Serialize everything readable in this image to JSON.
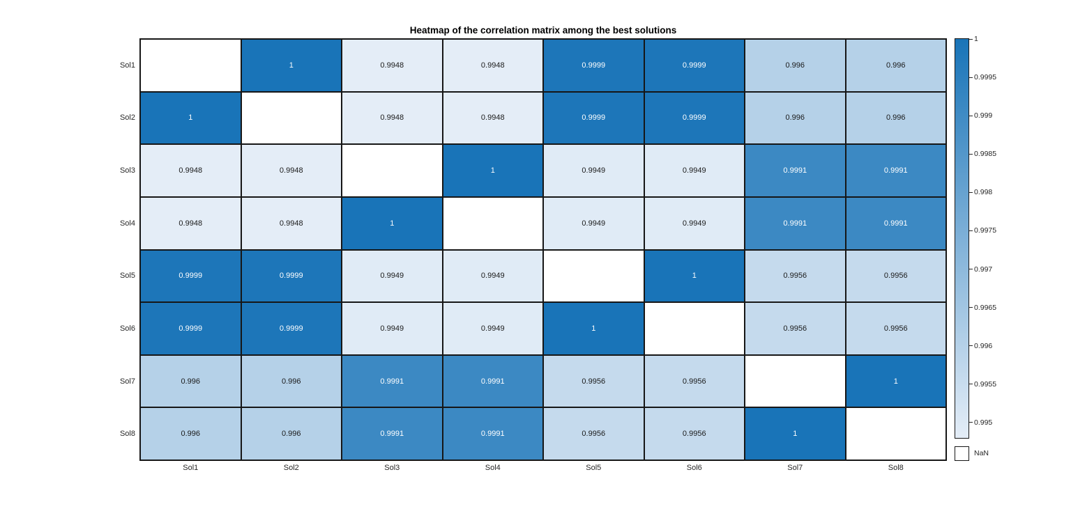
{
  "title": "Heatmap of the correlation matrix among the best solutions",
  "nan_legend": "NaN",
  "chart_data": {
    "type": "heatmap",
    "title": "Heatmap of the correlation matrix among the best solutions",
    "row_labels": [
      "Sol1",
      "Sol2",
      "Sol3",
      "Sol4",
      "Sol5",
      "Sol6",
      "Sol7",
      "Sol8"
    ],
    "col_labels": [
      "Sol1",
      "Sol2",
      "Sol3",
      "Sol4",
      "Sol5",
      "Sol6",
      "Sol7",
      "Sol8"
    ],
    "matrix": [
      [
        null,
        1,
        0.9948,
        0.9948,
        0.9999,
        0.9999,
        0.996,
        0.996
      ],
      [
        1,
        null,
        0.9948,
        0.9948,
        0.9999,
        0.9999,
        0.996,
        0.996
      ],
      [
        0.9948,
        0.9948,
        null,
        1,
        0.9949,
        0.9949,
        0.9991,
        0.9991
      ],
      [
        0.9948,
        0.9948,
        1,
        null,
        0.9949,
        0.9949,
        0.9991,
        0.9991
      ],
      [
        0.9999,
        0.9999,
        0.9949,
        0.9949,
        null,
        1,
        0.9956,
        0.9956
      ],
      [
        0.9999,
        0.9999,
        0.9949,
        0.9949,
        1,
        null,
        0.9956,
        0.9956
      ],
      [
        0.996,
        0.996,
        0.9991,
        0.9991,
        0.9956,
        0.9956,
        null,
        1
      ],
      [
        0.996,
        0.996,
        0.9991,
        0.9991,
        0.9956,
        0.9956,
        1,
        null
      ]
    ],
    "color_limits": [
      0.9948,
      1
    ],
    "colorbar_tick_labels": [
      "1",
      "0.9995",
      "0.999",
      "0.9985",
      "0.998",
      "0.9975",
      "0.997",
      "0.9965",
      "0.996",
      "0.9955",
      "0.995"
    ],
    "nan_label": "NaN",
    "legend_position": "right",
    "colors": {
      "low": "#e4edf7",
      "high": "#1974b8",
      "nan_cell": "#ffffff",
      "grid_line": "#161616",
      "cell_text_dark": "#1a1a1a",
      "cell_text_light": "#ffffff",
      "axis_text": "#262626"
    }
  }
}
